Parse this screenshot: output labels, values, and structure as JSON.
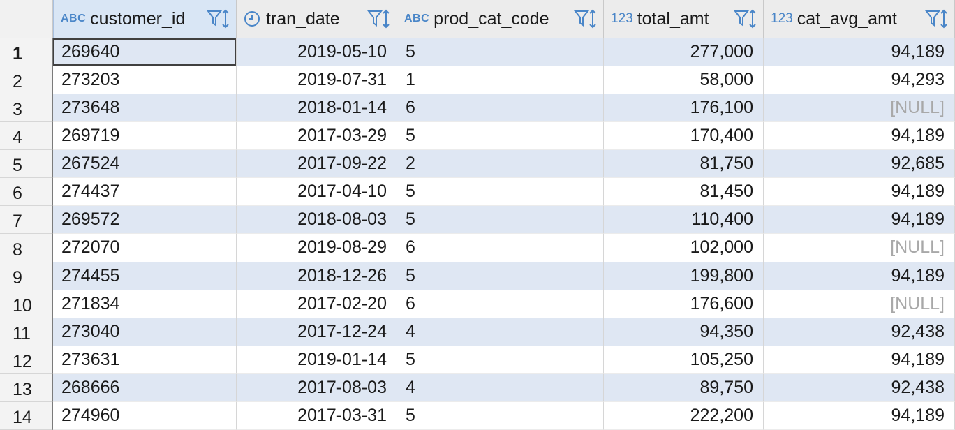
{
  "columns": [
    {
      "key": "customer_id",
      "label": "customer_id",
      "type_icon": "ABC"
    },
    {
      "key": "tran_date",
      "label": "tran_date",
      "type_icon": "clock"
    },
    {
      "key": "prod_cat_code",
      "label": "prod_cat_code",
      "type_icon": "ABC"
    },
    {
      "key": "total_amt",
      "label": "total_amt",
      "type_icon": "123"
    },
    {
      "key": "cat_avg_amt",
      "label": "cat_avg_amt",
      "type_icon": "123"
    }
  ],
  "icons": {
    "abc": "ABC",
    "num": "123",
    "num_locked": "123"
  },
  "accent_color": "#4a86c8",
  "row_stripe_color": "#dfe7f3",
  "rows": [
    {
      "idx": "1",
      "customer_id": "269640",
      "tran_date": "2019-05-10",
      "prod_cat_code": "5",
      "total_amt": "277,000",
      "cat_avg_amt": "94,189"
    },
    {
      "idx": "2",
      "customer_id": "273203",
      "tran_date": "2019-07-31",
      "prod_cat_code": "1",
      "total_amt": "58,000",
      "cat_avg_amt": "94,293"
    },
    {
      "idx": "3",
      "customer_id": "273648",
      "tran_date": "2018-01-14",
      "prod_cat_code": "6",
      "total_amt": "176,100",
      "cat_avg_amt": "[NULL]"
    },
    {
      "idx": "4",
      "customer_id": "269719",
      "tran_date": "2017-03-29",
      "prod_cat_code": "5",
      "total_amt": "170,400",
      "cat_avg_amt": "94,189"
    },
    {
      "idx": "5",
      "customer_id": "267524",
      "tran_date": "2017-09-22",
      "prod_cat_code": "2",
      "total_amt": "81,750",
      "cat_avg_amt": "92,685"
    },
    {
      "idx": "6",
      "customer_id": "274437",
      "tran_date": "2017-04-10",
      "prod_cat_code": "5",
      "total_amt": "81,450",
      "cat_avg_amt": "94,189"
    },
    {
      "idx": "7",
      "customer_id": "269572",
      "tran_date": "2018-08-03",
      "prod_cat_code": "5",
      "total_amt": "110,400",
      "cat_avg_amt": "94,189"
    },
    {
      "idx": "8",
      "customer_id": "272070",
      "tran_date": "2019-08-29",
      "prod_cat_code": "6",
      "total_amt": "102,000",
      "cat_avg_amt": "[NULL]"
    },
    {
      "idx": "9",
      "customer_id": "274455",
      "tran_date": "2018-12-26",
      "prod_cat_code": "5",
      "total_amt": "199,800",
      "cat_avg_amt": "94,189"
    },
    {
      "idx": "10",
      "customer_id": "271834",
      "tran_date": "2017-02-20",
      "prod_cat_code": "6",
      "total_amt": "176,600",
      "cat_avg_amt": "[NULL]"
    },
    {
      "idx": "11",
      "customer_id": "273040",
      "tran_date": "2017-12-24",
      "prod_cat_code": "4",
      "total_amt": "94,350",
      "cat_avg_amt": "92,438"
    },
    {
      "idx": "12",
      "customer_id": "273631",
      "tran_date": "2019-01-14",
      "prod_cat_code": "5",
      "total_amt": "105,250",
      "cat_avg_amt": "94,189"
    },
    {
      "idx": "13",
      "customer_id": "268666",
      "tran_date": "2017-08-03",
      "prod_cat_code": "4",
      "total_amt": "89,750",
      "cat_avg_amt": "92,438"
    },
    {
      "idx": "14",
      "customer_id": "274960",
      "tran_date": "2017-03-31",
      "prod_cat_code": "5",
      "total_amt": "222,200",
      "cat_avg_amt": "94,189"
    }
  ]
}
